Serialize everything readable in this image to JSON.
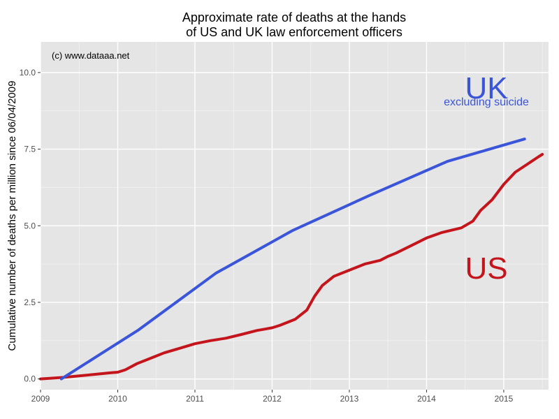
{
  "colors": {
    "panel": "#e5e5e5",
    "grid_major": "#ffffff",
    "grid_minor": "#f2f2f2",
    "tick_text": "#4d4d4d",
    "us": "#c4151c",
    "uk": "#3a55d9"
  },
  "chart_data": {
    "type": "line",
    "title": [
      "Approximate rate of deaths at the hands",
      "of US and UK law enforcement officers"
    ],
    "ylabel": "Cumulative number of deaths per million since 06/04/2009",
    "xlabel": "",
    "xlim": [
      2009.0,
      2015.58
    ],
    "ylim": [
      -0.35,
      11.0
    ],
    "x_ticks": [
      2009,
      2010,
      2011,
      2012,
      2013,
      2014,
      2015
    ],
    "x_tick_labels": [
      "2009",
      "2010",
      "2011",
      "2012",
      "2013",
      "2014",
      "2015"
    ],
    "y_ticks": [
      0,
      2.5,
      5,
      7.5,
      10
    ],
    "y_tick_labels": [
      "0.0",
      "2.5",
      "5.0",
      "7.5",
      "10.0"
    ],
    "grid": true,
    "annotations": {
      "copyright": "(c) www.dataaa.net",
      "uk_label": "UK",
      "uk_sublabel": "excluding suicide",
      "us_label": "US"
    },
    "series": [
      {
        "name": "US",
        "color": "#c4151c",
        "x": [
          2009.0,
          2009.3,
          2009.5,
          2009.7,
          2009.9,
          2010.0,
          2010.1,
          2010.25,
          2010.4,
          2010.6,
          2010.8,
          2011.0,
          2011.2,
          2011.4,
          2011.6,
          2011.8,
          2012.0,
          2012.1,
          2012.3,
          2012.45,
          2012.55,
          2012.65,
          2012.8,
          2013.0,
          2013.2,
          2013.4,
          2013.5,
          2013.6,
          2013.8,
          2014.0,
          2014.2,
          2014.45,
          2014.6,
          2014.7,
          2014.85,
          2015.0,
          2015.15,
          2015.3,
          2015.45,
          2015.5
        ],
        "y": [
          0.0,
          0.05,
          0.1,
          0.15,
          0.2,
          0.22,
          0.3,
          0.5,
          0.65,
          0.85,
          1.0,
          1.15,
          1.25,
          1.33,
          1.45,
          1.58,
          1.67,
          1.75,
          1.95,
          2.25,
          2.7,
          3.05,
          3.35,
          3.55,
          3.75,
          3.87,
          4.0,
          4.1,
          4.35,
          4.6,
          4.78,
          4.93,
          5.15,
          5.5,
          5.85,
          6.35,
          6.75,
          7.0,
          7.25,
          7.33
        ]
      },
      {
        "name": "UK",
        "color": "#3a55d9",
        "x": [
          2009.27,
          2010.27,
          2011.27,
          2012.27,
          2013.27,
          2014.27,
          2015.27
        ],
        "y": [
          0.0,
          1.6,
          3.45,
          4.85,
          6.0,
          7.1,
          7.83
        ]
      }
    ]
  }
}
